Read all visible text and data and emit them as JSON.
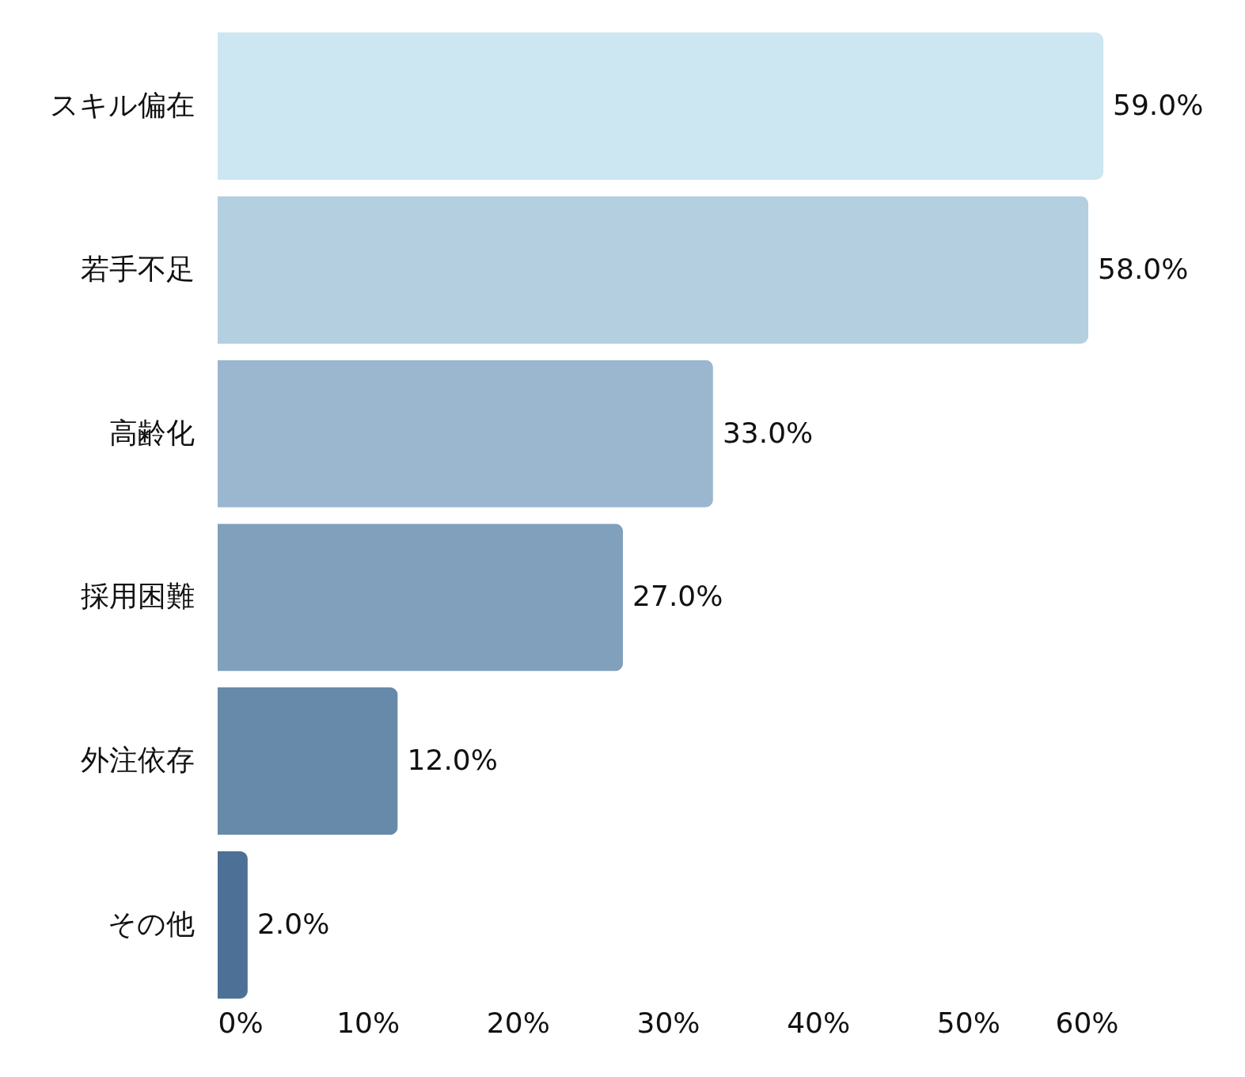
{
  "chart_data": {
    "type": "bar",
    "orientation": "horizontal",
    "categories": [
      "スキル偏在",
      "若手不足",
      "高齢化",
      "採用困難",
      "外注依存",
      "その他"
    ],
    "values": [
      59.0,
      58.0,
      33.0,
      27.0,
      12.0,
      2.0
    ],
    "value_labels": [
      "59.0%",
      "58.0%",
      "33.0%",
      "27.0%",
      "12.0%",
      "2.0%"
    ],
    "colors": [
      "#cce6f2",
      "#b3cfe0",
      "#9ab7cf",
      "#80a0bb",
      "#6789aa",
      "#4d7096"
    ],
    "xlim": [
      0,
      60
    ],
    "xticks": [
      {
        "value": 0,
        "label": "0%"
      },
      {
        "value": 10,
        "label": "10%"
      },
      {
        "value": 20,
        "label": "20%"
      },
      {
        "value": 30,
        "label": "30%"
      },
      {
        "value": 40,
        "label": "40%"
      },
      {
        "value": 50,
        "label": "50%"
      },
      {
        "value": 60,
        "label": "60%"
      }
    ],
    "grid": false,
    "legend": false
  }
}
